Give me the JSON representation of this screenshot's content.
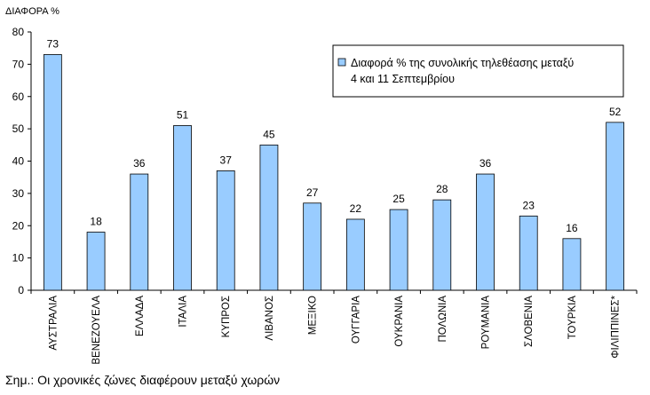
{
  "chart_data": {
    "type": "bar",
    "ylabel": "ΔΙΑΦΟΡΑ %",
    "ylim": [
      0,
      80
    ],
    "yticks": [
      0,
      10,
      20,
      30,
      40,
      50,
      60,
      70,
      80
    ],
    "grid": false,
    "legend": {
      "position": "top-right",
      "label_line1": "Διαφορά % της συνολικής τηλεθέασης μεταξύ",
      "label_line2": "4 και 11 Σεπτεμβρίου"
    },
    "categories": [
      "ΑΥΣΤΡΑΛΙΑ",
      "ΒΕΝΕΖΟΥΕΛΑ",
      "ΕΛΛΑΔΑ",
      "ΙΤΑΛΙΑ",
      "ΚΥΠΡΟΣ",
      "ΛΙΒΑΝΟΣ",
      "ΜΕΞΙΚΟ",
      "ΟΥΓΓΑΡΙΑ",
      "ΟΥΚΡΑΝΙΑ",
      "ΠΟΛΩΝΙΑ",
      "ΡΟΥΜΑΝΙΑ",
      "ΣΛΟΒΕΝΙΑ",
      "ΤΟΥΡΚΙΑ",
      "ΦΙΛΙΠΠΙΝΕΣ*"
    ],
    "values": [
      73,
      18,
      36,
      51,
      37,
      45,
      27,
      22,
      25,
      28,
      36,
      23,
      16,
      52
    ],
    "bar_color": "#99ccff",
    "bar_edge_color": "#000000"
  },
  "footnote": "Σημ.: Οι χρονικές ζώνες διαφέρουν μεταξύ χωρών"
}
